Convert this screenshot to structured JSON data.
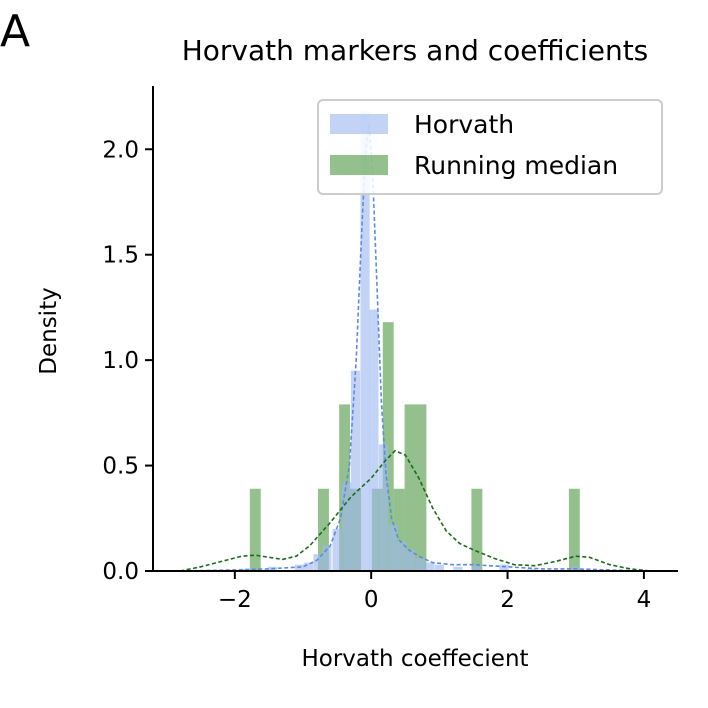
{
  "panel_letter": "A",
  "chart_data": {
    "type": "histogram",
    "title": "Horvath markers and coefficients",
    "xlabel": "Horvath coeffecient",
    "ylabel": "Density",
    "xlim": [
      -3.2,
      4.5
    ],
    "ylim": [
      0,
      2.3
    ],
    "xticks": [
      -2,
      0,
      2,
      4
    ],
    "xtick_labels": [
      "−2",
      "0",
      "2",
      "4"
    ],
    "yticks": [
      0.0,
      0.5,
      1.0,
      1.5,
      2.0
    ],
    "ytick_labels": [
      "0.0",
      "0.5",
      "1.0",
      "1.5",
      "2.0"
    ],
    "grid": false,
    "legend_position": "top-right",
    "series": [
      {
        "name": "Horvath",
        "color": "#9db8f0",
        "bin_width": 0.135,
        "bins": [
          {
            "x": -1.85,
            "y": 0.01
          },
          {
            "x": -1.45,
            "y": 0.02
          },
          {
            "x": -1.05,
            "y": 0.03
          },
          {
            "x": -0.92,
            "y": 0.04
          },
          {
            "x": -0.78,
            "y": 0.08
          },
          {
            "x": -0.65,
            "y": 0.12
          },
          {
            "x": -0.5,
            "y": 0.2
          },
          {
            "x": -0.36,
            "y": 0.42
          },
          {
            "x": -0.23,
            "y": 0.95
          },
          {
            "x": -0.09,
            "y": 2.18
          },
          {
            "x": 0.04,
            "y": 1.24
          },
          {
            "x": 0.18,
            "y": 0.6
          },
          {
            "x": 0.32,
            "y": 0.22
          },
          {
            "x": 0.45,
            "y": 0.14
          },
          {
            "x": 0.58,
            "y": 0.1
          },
          {
            "x": 0.72,
            "y": 0.06
          },
          {
            "x": 0.86,
            "y": 0.04
          },
          {
            "x": 1.0,
            "y": 0.03
          },
          {
            "x": 1.27,
            "y": 0.02
          },
          {
            "x": 1.54,
            "y": 0.03
          },
          {
            "x": 1.95,
            "y": 0.03
          },
          {
            "x": 2.35,
            "y": 0.01
          },
          {
            "x": 3.0,
            "y": 0.02
          }
        ],
        "kde": [
          [
            -2.8,
            0.0
          ],
          [
            -2.0,
            0.005
          ],
          [
            -1.5,
            0.01
          ],
          [
            -1.0,
            0.02
          ],
          [
            -0.8,
            0.05
          ],
          [
            -0.6,
            0.12
          ],
          [
            -0.45,
            0.25
          ],
          [
            -0.32,
            0.5
          ],
          [
            -0.22,
            1.0
          ],
          [
            -0.14,
            1.6
          ],
          [
            -0.08,
            2.0
          ],
          [
            -0.03,
            2.12
          ],
          [
            0.02,
            1.9
          ],
          [
            0.08,
            1.4
          ],
          [
            0.15,
            0.8
          ],
          [
            0.22,
            0.45
          ],
          [
            0.3,
            0.25
          ],
          [
            0.4,
            0.15
          ],
          [
            0.55,
            0.1
          ],
          [
            0.7,
            0.07
          ],
          [
            0.9,
            0.04
          ],
          [
            1.2,
            0.03
          ],
          [
            1.5,
            0.03
          ],
          [
            2.0,
            0.02
          ],
          [
            2.5,
            0.01
          ],
          [
            3.0,
            0.01
          ],
          [
            4.0,
            0.0
          ]
        ]
      },
      {
        "name": "Running median",
        "color": "#6aa860",
        "kde_color": "#1a6b1a",
        "bin_width": 0.16,
        "bins": [
          {
            "x": -1.7,
            "y": 0.39
          },
          {
            "x": -0.7,
            "y": 0.39
          },
          {
            "x": -0.39,
            "y": 0.79
          },
          {
            "x": -0.23,
            "y": 0.39
          },
          {
            "x": 0.09,
            "y": 0.39
          },
          {
            "x": 0.25,
            "y": 1.18
          },
          {
            "x": 0.41,
            "y": 0.39
          },
          {
            "x": 0.57,
            "y": 0.79
          },
          {
            "x": 0.73,
            "y": 0.79
          },
          {
            "x": 1.55,
            "y": 0.39
          },
          {
            "x": 2.98,
            "y": 0.39
          }
        ],
        "kde": [
          [
            -2.8,
            0.0
          ],
          [
            -2.5,
            0.02
          ],
          [
            -2.2,
            0.045
          ],
          [
            -1.9,
            0.07
          ],
          [
            -1.7,
            0.075
          ],
          [
            -1.5,
            0.065
          ],
          [
            -1.3,
            0.055
          ],
          [
            -1.1,
            0.07
          ],
          [
            -0.9,
            0.12
          ],
          [
            -0.6,
            0.23
          ],
          [
            -0.3,
            0.35
          ],
          [
            0.0,
            0.44
          ],
          [
            0.2,
            0.52
          ],
          [
            0.35,
            0.57
          ],
          [
            0.5,
            0.55
          ],
          [
            0.7,
            0.44
          ],
          [
            0.9,
            0.3
          ],
          [
            1.1,
            0.19
          ],
          [
            1.3,
            0.13
          ],
          [
            1.5,
            0.1
          ],
          [
            1.8,
            0.06
          ],
          [
            2.1,
            0.03
          ],
          [
            2.4,
            0.025
          ],
          [
            2.7,
            0.045
          ],
          [
            3.0,
            0.07
          ],
          [
            3.2,
            0.065
          ],
          [
            3.5,
            0.03
          ],
          [
            3.8,
            0.01
          ],
          [
            4.1,
            0.0
          ]
        ]
      }
    ]
  }
}
